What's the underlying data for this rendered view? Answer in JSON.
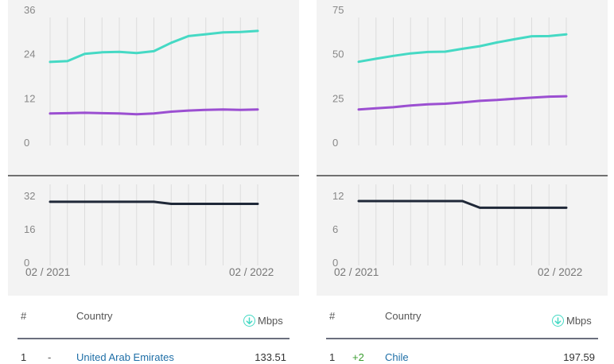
{
  "colors": {
    "teal": "#45d9c4",
    "purple": "#9b4fd1",
    "navy": "#1f2838",
    "link": "#1f6fa7",
    "positive": "#3a9d2f"
  },
  "table_header": {
    "hash": "#",
    "country": "Country",
    "mbps": "Mbps",
    "mbps_icon": "arrow-down-circle-icon"
  },
  "panels": [
    {
      "upper_ticks": [
        "36",
        "24",
        "12",
        "0"
      ],
      "lower_ticks": [
        "32",
        "16",
        "0"
      ],
      "date_start": "02 / 2021",
      "date_end": "02 / 2022",
      "row": {
        "rank": "1",
        "change": "-",
        "country": "United Arab Emirates",
        "speed": "133.51"
      }
    },
    {
      "upper_ticks": [
        "75",
        "50",
        "25",
        "0"
      ],
      "lower_ticks": [
        "12",
        "6",
        "0"
      ],
      "date_start": "02 / 2021",
      "date_end": "02 / 2022",
      "row": {
        "rank": "1",
        "change": "+2",
        "country": "Chile",
        "speed": "197.59"
      }
    }
  ],
  "chart_data": [
    {
      "type": "line",
      "x": [
        "02/2021",
        "03/2021",
        "04/2021",
        "05/2021",
        "06/2021",
        "07/2021",
        "08/2021",
        "09/2021",
        "10/2021",
        "11/2021",
        "12/2021",
        "01/2022",
        "02/2022"
      ],
      "ylim": [
        0,
        36
      ],
      "yticks": [
        0,
        12,
        24,
        36
      ],
      "grid": "vertical",
      "series": [
        {
          "color": "#45d9c4",
          "values": [
            21.8,
            22.0,
            24.0,
            24.4,
            24.5,
            24.2,
            24.7,
            27.0,
            28.8,
            29.3,
            29.8,
            29.9,
            30.2
          ]
        },
        {
          "color": "#9b4fd1",
          "values": [
            7.8,
            7.9,
            8.0,
            7.9,
            7.8,
            7.6,
            7.8,
            8.3,
            8.6,
            8.8,
            8.9,
            8.8,
            8.9
          ]
        }
      ]
    },
    {
      "type": "line",
      "x": [
        "02/2021",
        "03/2021",
        "04/2021",
        "05/2021",
        "06/2021",
        "07/2021",
        "08/2021",
        "09/2021",
        "10/2021",
        "11/2021",
        "12/2021",
        "01/2022",
        "02/2022"
      ],
      "ylim": [
        0,
        32
      ],
      "yticks": [
        0,
        16,
        32
      ],
      "grid": "vertical",
      "series": [
        {
          "color": "#1f2838",
          "values": [
            29,
            29,
            29,
            29,
            29,
            29,
            29,
            28,
            28,
            28,
            28,
            28,
            28
          ]
        }
      ]
    },
    {
      "type": "line",
      "x": [
        "02/2021",
        "03/2021",
        "04/2021",
        "05/2021",
        "06/2021",
        "07/2021",
        "08/2021",
        "09/2021",
        "10/2021",
        "11/2021",
        "12/2021",
        "01/2022",
        "02/2022"
      ],
      "ylim": [
        0,
        75
      ],
      "yticks": [
        0,
        25,
        50,
        75
      ],
      "grid": "vertical",
      "series": [
        {
          "color": "#45d9c4",
          "values": [
            45.5,
            47.2,
            48.8,
            50.2,
            51.0,
            51.2,
            52.8,
            54.3,
            56.4,
            58.2,
            59.9,
            60.0,
            61.0
          ]
        },
        {
          "color": "#9b4fd1",
          "values": [
            18.5,
            19.2,
            19.8,
            20.8,
            21.4,
            21.8,
            22.5,
            23.4,
            23.9,
            24.6,
            25.2,
            25.8,
            26.0
          ]
        }
      ]
    },
    {
      "type": "line",
      "x": [
        "02/2021",
        "03/2021",
        "04/2021",
        "05/2021",
        "06/2021",
        "07/2021",
        "08/2021",
        "09/2021",
        "10/2021",
        "11/2021",
        "12/2021",
        "01/2022",
        "02/2022"
      ],
      "ylim": [
        0,
        12
      ],
      "yticks": [
        0,
        6,
        12
      ],
      "grid": "vertical",
      "series": [
        {
          "color": "#1f2838",
          "values": [
            11.0,
            11.0,
            11.0,
            11.0,
            11.0,
            11.0,
            11.0,
            9.8,
            9.8,
            9.8,
            9.8,
            9.8,
            9.8
          ]
        }
      ]
    }
  ]
}
